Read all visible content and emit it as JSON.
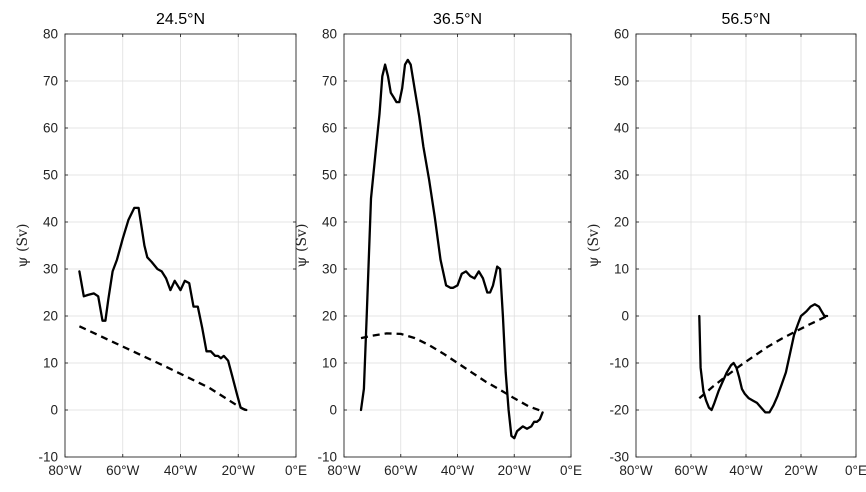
{
  "chart_data": [
    {
      "type": "line",
      "title": "24.5°N",
      "ylabel": "ψ (Sv)",
      "xlim": [
        -80,
        0
      ],
      "ylim": [
        -10,
        80
      ],
      "xticks": [
        -80,
        -60,
        -40,
        -20,
        0
      ],
      "xtick_labels": [
        "80°W",
        "60°W",
        "40°W",
        "20°W",
        "0°E"
      ],
      "yticks": [
        -10,
        0,
        10,
        20,
        30,
        40,
        50,
        60,
        70,
        80
      ],
      "ytick_labels": [
        "-10",
        "0",
        "10",
        "20",
        "30",
        "40",
        "50",
        "60",
        "70",
        "80"
      ],
      "grid": true,
      "series": [
        {
          "style": "solid",
          "x": [
            -75,
            -73.5,
            -72,
            -70,
            -68.5,
            -67,
            -66,
            -65,
            -63.5,
            -62,
            -60,
            -58,
            -56,
            -54.5,
            -53.5,
            -52.5,
            -51.5,
            -50,
            -48,
            -46.5,
            -45,
            -43.5,
            -42,
            -40,
            -38.5,
            -37,
            -35.5,
            -34,
            -32.5,
            -31,
            -29.5,
            -28,
            -27,
            -26,
            -25,
            -23.5,
            -22,
            -20.5,
            -19.2,
            -18.2,
            -17.2
          ],
          "y": [
            29.5,
            24.2,
            24.5,
            24.8,
            24.2,
            19,
            19,
            23.5,
            29.5,
            32,
            36.5,
            40.5,
            43,
            43,
            39,
            35,
            32.5,
            31.5,
            30,
            29.5,
            28,
            25.5,
            27.5,
            25.5,
            27.5,
            27,
            22,
            22,
            17.5,
            12.5,
            12.5,
            11.5,
            11.5,
            11,
            11.5,
            10.5,
            7,
            3.5,
            0.5,
            0.2,
            0
          ]
        },
        {
          "style": "dashed",
          "x": [
            -75,
            -60,
            -45,
            -30,
            -20,
            -17.5
          ],
          "y": [
            17.8,
            13.5,
            9.2,
            4.7,
            0.8,
            0
          ]
        }
      ]
    },
    {
      "type": "line",
      "title": "36.5°N",
      "ylabel": "ψ (Sv)",
      "xlim": [
        -80,
        0
      ],
      "ylim": [
        -10,
        80
      ],
      "xticks": [
        -80,
        -60,
        -40,
        -20,
        0
      ],
      "xtick_labels": [
        "80°W",
        "60°W",
        "40°W",
        "20°W",
        "0°E"
      ],
      "yticks": [
        -10,
        0,
        10,
        20,
        30,
        40,
        50,
        60,
        70,
        80
      ],
      "ytick_labels": [
        "-10",
        "0",
        "10",
        "20",
        "30",
        "40",
        "50",
        "60",
        "70",
        "80"
      ],
      "grid": true,
      "series": [
        {
          "style": "solid",
          "x": [
            -74,
            -73,
            -72,
            -70.5,
            -69,
            -67.5,
            -66.5,
            -65.5,
            -64.5,
            -63.5,
            -62.5,
            -61.5,
            -60.5,
            -59.5,
            -58.5,
            -57.5,
            -56.5,
            -55,
            -53.5,
            -52,
            -50,
            -48,
            -46,
            -44,
            -42.5,
            -41.5,
            -40,
            -38.5,
            -37,
            -35.5,
            -34,
            -32.5,
            -31,
            -29.5,
            -28.5,
            -27.5,
            -26,
            -25,
            -24,
            -23,
            -22,
            -21,
            -20,
            -19,
            -18,
            -17,
            -15.5,
            -14,
            -13,
            -12,
            -11,
            -10
          ],
          "y": [
            0,
            4.5,
            20,
            45,
            54,
            63,
            71,
            73.5,
            71,
            67.5,
            66.5,
            65.5,
            65.5,
            68.5,
            73.5,
            74.5,
            73.5,
            68,
            62.5,
            56,
            49,
            41,
            32,
            26.5,
            26,
            26,
            26.5,
            29,
            29.5,
            28.5,
            28,
            29.5,
            28,
            25,
            25,
            26.5,
            30.5,
            30,
            20,
            8,
            0,
            -5.5,
            -6,
            -4.5,
            -4,
            -3.5,
            -4,
            -3.5,
            -2.5,
            -2.5,
            -2,
            -0.5
          ]
        },
        {
          "style": "dashed",
          "x": [
            -74,
            -70,
            -65,
            -60,
            -55,
            -50,
            -45,
            -40,
            -35,
            -30,
            -25,
            -20,
            -15,
            -10
          ],
          "y": [
            15.3,
            15.8,
            16.3,
            16.2,
            15.3,
            13.8,
            12,
            10,
            8,
            6,
            4.3,
            2.5,
            0.8,
            -0.3
          ]
        }
      ]
    },
    {
      "type": "line",
      "title": "56.5°N",
      "ylabel": "ψ (Sv)",
      "xlim": [
        -80,
        0
      ],
      "ylim": [
        -30,
        60
      ],
      "xticks": [
        -80,
        -60,
        -40,
        -20,
        0
      ],
      "xtick_labels": [
        "80°W",
        "60°W",
        "40°W",
        "20°W",
        "0°E"
      ],
      "yticks": [
        -30,
        -20,
        -10,
        0,
        10,
        20,
        30,
        40,
        50,
        60
      ],
      "ytick_labels": [
        "-30",
        "-20",
        "-10",
        "0",
        "10",
        "20",
        "30",
        "40",
        "50",
        "60"
      ],
      "grid": true,
      "series": [
        {
          "style": "solid",
          "x": [
            -57,
            -56.5,
            -55.5,
            -54.5,
            -53.5,
            -52.5,
            -51.5,
            -50,
            -48.5,
            -47,
            -45.5,
            -44.5,
            -43.5,
            -42.5,
            -41.5,
            -40.5,
            -39,
            -37.5,
            -36,
            -34.5,
            -33,
            -31.5,
            -30,
            -28.5,
            -27,
            -25.5,
            -24,
            -22.5,
            -21,
            -20,
            -19,
            -18,
            -16.5,
            -15,
            -13.5,
            -12.5,
            -11.5,
            -10.5
          ],
          "y": [
            0,
            -11,
            -16,
            -18,
            -19.5,
            -20,
            -18.5,
            -16,
            -14,
            -12,
            -10.5,
            -10,
            -11,
            -13,
            -15.5,
            -16.5,
            -17.5,
            -18,
            -18.5,
            -19.5,
            -20.5,
            -20.5,
            -19,
            -17,
            -14.5,
            -12,
            -8,
            -4,
            -1.5,
            0,
            0.5,
            1,
            2,
            2.5,
            2,
            1,
            0,
            0
          ]
        },
        {
          "style": "dashed",
          "x": [
            -57,
            -52,
            -47,
            -42,
            -37,
            -32,
            -27,
            -22,
            -17,
            -13,
            -10.5
          ],
          "y": [
            -17.5,
            -15,
            -12.7,
            -10.5,
            -8.5,
            -6.5,
            -4.8,
            -3.3,
            -1.8,
            -0.7,
            0
          ]
        }
      ]
    }
  ]
}
